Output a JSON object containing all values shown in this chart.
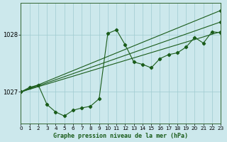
{
  "title": "Graphe pression niveau de la mer (hPa)",
  "bg_color": "#cce8ec",
  "grid_color": "#9fcbd0",
  "line_color": "#1a5c1a",
  "xlim": [
    0,
    23
  ],
  "ylim": [
    1026.45,
    1028.55
  ],
  "yticks": [
    1027,
    1028
  ],
  "xticks": [
    0,
    1,
    2,
    3,
    4,
    5,
    6,
    7,
    8,
    9,
    10,
    11,
    12,
    13,
    14,
    15,
    16,
    17,
    18,
    19,
    20,
    21,
    22,
    23
  ],
  "trend1_x": [
    0,
    23
  ],
  "trend1_y": [
    1027.0,
    1028.42
  ],
  "trend2_x": [
    0,
    23
  ],
  "trend2_y": [
    1027.0,
    1028.22
  ],
  "trend3_x": [
    0,
    23
  ],
  "trend3_y": [
    1027.0,
    1028.05
  ],
  "zigzag_x": [
    0,
    1,
    2,
    3,
    4,
    5,
    6,
    7,
    8,
    9,
    10,
    11,
    12,
    13,
    14,
    15,
    16,
    17,
    18,
    19,
    20,
    21,
    22,
    23
  ],
  "zigzag_y": [
    1027.0,
    1027.08,
    1027.12,
    1026.78,
    1026.65,
    1026.58,
    1026.68,
    1026.72,
    1026.75,
    1026.88,
    1028.02,
    1028.08,
    1027.82,
    1027.52,
    1027.48,
    1027.42,
    1027.58,
    1027.65,
    1027.68,
    1027.78,
    1027.95,
    1027.85,
    1028.05,
    1028.03
  ]
}
